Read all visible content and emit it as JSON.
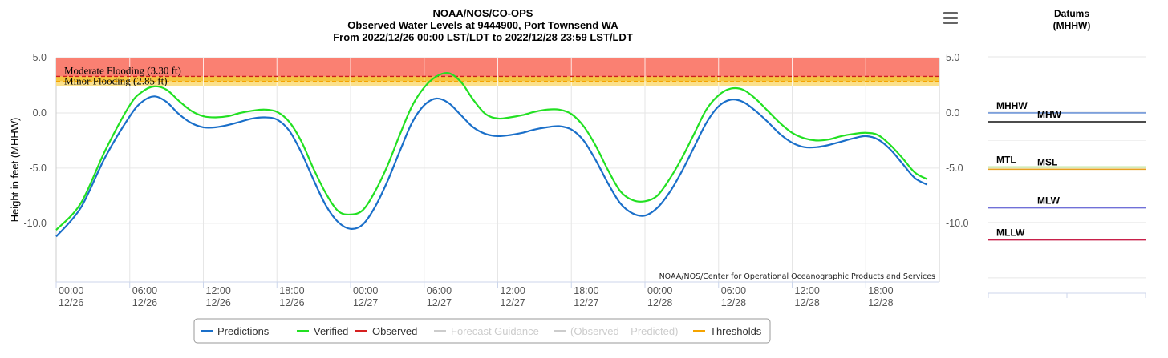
{
  "chart_data": [
    {
      "type": "line",
      "title": [
        "NOAA/NOS/CO-OPS",
        "Observed Water Levels at 9444900, Port Townsend WA",
        "From 2022/12/26 00:00 LST/LDT to 2022/12/28 23:59 LST/LDT"
      ],
      "ylabel": "Height in feet (MHHW)",
      "ylim": [
        -15.3,
        5.0
      ],
      "xlim_hours": [
        0,
        72
      ],
      "y_ticks": [
        5,
        0,
        -5,
        -10
      ],
      "y_tick_labels": [
        "5.0",
        "0.0",
        "-5.0",
        "-10.0"
      ],
      "right_tick_labels": [
        "5.0",
        "0.0",
        "-5.0",
        "-10.0"
      ],
      "x_ticks": [
        {
          "hour": 0,
          "time": "00:00",
          "date": "12/26"
        },
        {
          "hour": 6,
          "time": "06:00",
          "date": "12/26"
        },
        {
          "hour": 12,
          "time": "12:00",
          "date": "12/26"
        },
        {
          "hour": 18,
          "time": "18:00",
          "date": "12/26"
        },
        {
          "hour": 24,
          "time": "00:00",
          "date": "12/27"
        },
        {
          "hour": 30,
          "time": "06:00",
          "date": "12/27"
        },
        {
          "hour": 36,
          "time": "12:00",
          "date": "12/27"
        },
        {
          "hour": 42,
          "time": "18:00",
          "date": "12/27"
        },
        {
          "hour": 48,
          "time": "00:00",
          "date": "12/28"
        },
        {
          "hour": 54,
          "time": "06:00",
          "date": "12/28"
        },
        {
          "hour": 60,
          "time": "12:00",
          "date": "12/28"
        },
        {
          "hour": 66,
          "time": "18:00",
          "date": "12/28"
        }
      ],
      "thresholds": [
        {
          "name": "Moderate Flooding (3.30 ft)",
          "value": 3.3,
          "color": "#cc1f1f"
        },
        {
          "name": "Minor Flooding (2.85 ft)",
          "value": 2.85,
          "color": "#f5a300"
        }
      ],
      "flood_band_colors": {
        "major": "#fa8072",
        "moderate": "#f5c542",
        "minor": "#fbe08a"
      },
      "series": [
        {
          "name": "Predictions",
          "color": "#1a6fc9",
          "points": [
            [
              0,
              -11.2
            ],
            [
              2,
              -8.6
            ],
            [
              4,
              -4.0
            ],
            [
              6,
              -0.3
            ],
            [
              7,
              1.0
            ],
            [
              8,
              1.5
            ],
            [
              9,
              1.0
            ],
            [
              10,
              -0.1
            ],
            [
              11,
              -0.9
            ],
            [
              12,
              -1.3
            ],
            [
              13,
              -1.3
            ],
            [
              14,
              -1.1
            ],
            [
              15,
              -0.8
            ],
            [
              16,
              -0.5
            ],
            [
              17,
              -0.4
            ],
            [
              18,
              -0.6
            ],
            [
              19,
              -1.6
            ],
            [
              20,
              -3.6
            ],
            [
              21,
              -6.1
            ],
            [
              22,
              -8.4
            ],
            [
              23,
              -9.9
            ],
            [
              24,
              -10.5
            ],
            [
              25,
              -10.1
            ],
            [
              26,
              -8.5
            ],
            [
              27,
              -6.2
            ],
            [
              28,
              -3.5
            ],
            [
              29,
              -0.9
            ],
            [
              30,
              0.7
            ],
            [
              31,
              1.3
            ],
            [
              32,
              0.9
            ],
            [
              33,
              -0.2
            ],
            [
              34,
              -1.3
            ],
            [
              35,
              -1.9
            ],
            [
              36,
              -2.1
            ],
            [
              37,
              -2.0
            ],
            [
              38,
              -1.8
            ],
            [
              39,
              -1.5
            ],
            [
              40,
              -1.3
            ],
            [
              41,
              -1.2
            ],
            [
              42,
              -1.5
            ],
            [
              43,
              -2.5
            ],
            [
              44,
              -4.3
            ],
            [
              45,
              -6.4
            ],
            [
              46,
              -8.2
            ],
            [
              47,
              -9.1
            ],
            [
              48,
              -9.3
            ],
            [
              49,
              -8.6
            ],
            [
              50,
              -7.2
            ],
            [
              51,
              -5.3
            ],
            [
              52,
              -3.1
            ],
            [
              53,
              -0.9
            ],
            [
              54,
              0.6
            ],
            [
              55,
              1.2
            ],
            [
              56,
              1.0
            ],
            [
              57,
              0.2
            ],
            [
              58,
              -0.8
            ],
            [
              59,
              -1.9
            ],
            [
              60,
              -2.7
            ],
            [
              61,
              -3.1
            ],
            [
              62,
              -3.1
            ],
            [
              63,
              -2.9
            ],
            [
              64,
              -2.6
            ],
            [
              65,
              -2.3
            ],
            [
              66,
              -2.1
            ],
            [
              67,
              -2.4
            ],
            [
              68,
              -3.3
            ],
            [
              69,
              -4.6
            ],
            [
              70,
              -5.9
            ],
            [
              71,
              -6.5
            ]
          ]
        },
        {
          "name": "Verified",
          "color": "#22e022",
          "points": [
            [
              0,
              -10.6
            ],
            [
              2,
              -8.2
            ],
            [
              4,
              -3.4
            ],
            [
              6,
              0.7
            ],
            [
              7,
              1.9
            ],
            [
              8,
              2.4
            ],
            [
              9,
              2.1
            ],
            [
              10,
              1.1
            ],
            [
              11,
              0.2
            ],
            [
              12,
              -0.3
            ],
            [
              13,
              -0.4
            ],
            [
              14,
              -0.3
            ],
            [
              15,
              0.0
            ],
            [
              16,
              0.2
            ],
            [
              17,
              0.3
            ],
            [
              18,
              0.1
            ],
            [
              19,
              -0.8
            ],
            [
              20,
              -2.6
            ],
            [
              21,
              -5.1
            ],
            [
              22,
              -7.3
            ],
            [
              23,
              -8.9
            ],
            [
              24,
              -9.2
            ],
            [
              25,
              -8.8
            ],
            [
              26,
              -7.1
            ],
            [
              27,
              -4.8
            ],
            [
              28,
              -2.0
            ],
            [
              29,
              0.6
            ],
            [
              30,
              2.3
            ],
            [
              31,
              3.3
            ],
            [
              32,
              3.6
            ],
            [
              33,
              2.8
            ],
            [
              34,
              1.2
            ],
            [
              35,
              -0.1
            ],
            [
              36,
              -0.5
            ],
            [
              37,
              -0.4
            ],
            [
              38,
              -0.2
            ],
            [
              39,
              0.1
            ],
            [
              40,
              0.3
            ],
            [
              41,
              0.3
            ],
            [
              42,
              -0.1
            ],
            [
              43,
              -1.2
            ],
            [
              44,
              -3.0
            ],
            [
              45,
              -5.2
            ],
            [
              46,
              -7.1
            ],
            [
              47,
              -7.9
            ],
            [
              48,
              -8.0
            ],
            [
              49,
              -7.5
            ],
            [
              50,
              -6.0
            ],
            [
              51,
              -4.1
            ],
            [
              52,
              -1.9
            ],
            [
              53,
              0.3
            ],
            [
              54,
              1.6
            ],
            [
              55,
              2.2
            ],
            [
              56,
              2.1
            ],
            [
              57,
              1.3
            ],
            [
              58,
              0.2
            ],
            [
              59,
              -0.9
            ],
            [
              60,
              -1.8
            ],
            [
              61,
              -2.3
            ],
            [
              62,
              -2.5
            ],
            [
              63,
              -2.4
            ],
            [
              64,
              -2.1
            ],
            [
              65,
              -1.9
            ],
            [
              66,
              -1.8
            ],
            [
              67,
              -2.0
            ],
            [
              68,
              -2.9
            ],
            [
              69,
              -4.1
            ],
            [
              70,
              -5.4
            ],
            [
              71,
              -6.0
            ]
          ]
        }
      ],
      "legend": [
        {
          "label": "Predictions",
          "color": "#1a6fc9",
          "active": true
        },
        {
          "label": "Verified",
          "color": "#22e022",
          "active": true
        },
        {
          "label": "Observed",
          "color": "#d62020",
          "active": true
        },
        {
          "label": "Forecast Guidance",
          "color": "#cccccc",
          "active": false
        },
        {
          "label": "(Observed – Predicted)",
          "color": "#cccccc",
          "active": false
        },
        {
          "label": "Thresholds",
          "color": "#f5a300",
          "active": true
        }
      ],
      "credit": "NOAA/NOS/Center for Operational Oceanographic Products and Services"
    },
    {
      "type": "line",
      "title": [
        "Datums",
        "(MHHW)"
      ],
      "datums": [
        {
          "name": "MHHW",
          "value": 0.0,
          "color": "#6f96d8",
          "label_pos": "left"
        },
        {
          "name": "MHW",
          "value": -0.8,
          "color": "#111111",
          "label_pos": "right"
        },
        {
          "name": "MTL",
          "value": -4.9,
          "color": "#8fd04a",
          "label_pos": "left"
        },
        {
          "name": "MSL",
          "value": -5.1,
          "color": "#e6a020",
          "label_pos": "right"
        },
        {
          "name": "MLW",
          "value": -8.6,
          "color": "#7070d8",
          "label_pos": "right"
        },
        {
          "name": "MLLW",
          "value": -11.5,
          "color": "#c8204a",
          "label_pos": "left"
        }
      ]
    }
  ],
  "menu": {
    "icon": "hamburger-menu-icon"
  }
}
